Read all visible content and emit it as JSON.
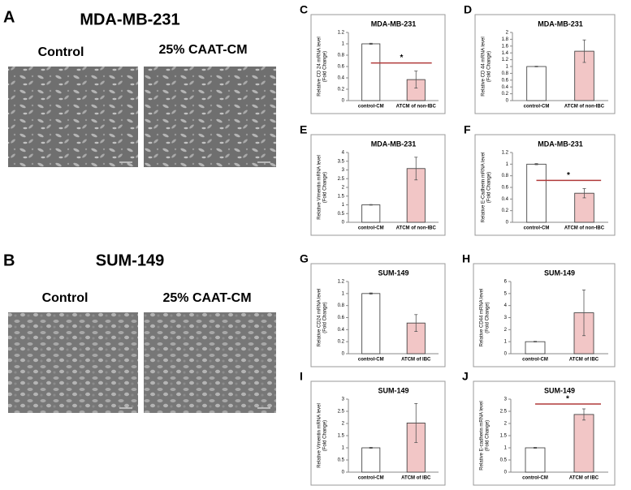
{
  "panels": {
    "a": {
      "letter": "A",
      "cell_line": "MDA-MB-231",
      "left_label": "Control",
      "right_label": "25% CAAT-CM"
    },
    "b": {
      "letter": "B",
      "cell_line": "SUM-149",
      "left_label": "Control",
      "right_label": "25% CAAT-CM"
    }
  },
  "chart_data": [
    {
      "type": "bar",
      "letter": "C",
      "title": "MDA-MB-231",
      "y_label": [
        "Relative CD 24 mRNA level",
        "(Fold Change)"
      ],
      "categories": [
        "control-CM",
        "ATCM of non-IBC"
      ],
      "values": [
        1,
        0.37
      ],
      "errors": [
        0.01,
        0.15
      ],
      "colors": [
        "#ffffff",
        "#f2c6c6"
      ],
      "ylim": [
        0,
        1.2
      ],
      "yticks": [
        0,
        0.2,
        0.4,
        0.6,
        0.8,
        1,
        1.2
      ],
      "significance": "*"
    },
    {
      "type": "bar",
      "letter": "D",
      "title": "MDA-MB-231",
      "y_label": [
        "Relative CD 44 mRNA level",
        "(Fold Change)"
      ],
      "categories": [
        "control-CM",
        "ATCM of non-IBC"
      ],
      "values": [
        1,
        1.45
      ],
      "errors": [
        0.01,
        0.33
      ],
      "colors": [
        "#ffffff",
        "#f2c6c6"
      ],
      "ylim": [
        0,
        2
      ],
      "yticks": [
        0,
        0.2,
        0.4,
        0.6,
        0.8,
        1,
        1.2,
        1.4,
        1.6,
        1.8,
        2
      ]
    },
    {
      "type": "bar",
      "letter": "E",
      "title": "MDA-MB-231",
      "y_label": [
        "Relative Vimentin mRNA level",
        "(Fold Change)"
      ],
      "categories": [
        "control-CM",
        "ATCM of non-IBC"
      ],
      "values": [
        1,
        3.08
      ],
      "errors": [
        0.02,
        0.65
      ],
      "colors": [
        "#ffffff",
        "#f2c6c6"
      ],
      "ylim": [
        0,
        4
      ],
      "yticks": [
        0,
        0.5,
        1,
        1.5,
        2,
        2.5,
        3,
        3.5,
        4
      ]
    },
    {
      "type": "bar",
      "letter": "F",
      "title": "MDA-MB-231",
      "y_label": [
        "Relative E-Cadherin mRNA level",
        "(Fold Change)"
      ],
      "categories": [
        "control-CM",
        "ATCM of non-IBC"
      ],
      "values": [
        1,
        0.5
      ],
      "errors": [
        0.01,
        0.08
      ],
      "colors": [
        "#ffffff",
        "#f2c6c6"
      ],
      "ylim": [
        0,
        1.2
      ],
      "yticks": [
        0,
        0.2,
        0.4,
        0.6,
        0.8,
        1,
        1.2
      ],
      "significance": "*"
    },
    {
      "type": "bar",
      "letter": "G",
      "title": "SUM-149",
      "y_label": [
        "Relative CD24 mRNA level",
        "(Fold Change)"
      ],
      "categories": [
        "control-CM",
        "ATCM of IBC"
      ],
      "values": [
        1,
        0.51
      ],
      "errors": [
        0.01,
        0.14
      ],
      "colors": [
        "#ffffff",
        "#f2c6c6"
      ],
      "ylim": [
        0,
        1.2
      ],
      "yticks": [
        0,
        0.2,
        0.4,
        0.6,
        0.8,
        1,
        1.2
      ]
    },
    {
      "type": "bar",
      "letter": "H",
      "title": "SUM-149",
      "y_label": [
        "Relative CD44 mRNA level",
        "(Fold Change)"
      ],
      "categories": [
        "control-CM",
        "ATCM of IBC"
      ],
      "values": [
        1,
        3.4
      ],
      "errors": [
        0.03,
        1.9
      ],
      "colors": [
        "#ffffff",
        "#f2c6c6"
      ],
      "ylim": [
        0,
        6
      ],
      "yticks": [
        0,
        1,
        2,
        3,
        4,
        5,
        6
      ]
    },
    {
      "type": "bar",
      "letter": "I",
      "title": "SUM-149",
      "y_label": [
        "Relative Vimentin mRNA level",
        "(Fold Change)"
      ],
      "categories": [
        "control-CM",
        "ATCM of IBC"
      ],
      "values": [
        1,
        2.02
      ],
      "errors": [
        0.02,
        0.8
      ],
      "colors": [
        "#ffffff",
        "#f2c6c6"
      ],
      "ylim": [
        0,
        3
      ],
      "yticks": [
        0,
        0.5,
        1,
        1.5,
        2,
        2.5,
        3
      ]
    },
    {
      "type": "bar",
      "letter": "J",
      "title": "SUM-149",
      "y_label": [
        "Relative E-cadherin mRNA level",
        "(Fold Change)"
      ],
      "categories": [
        "control-CM",
        "ATCM of IBC"
      ],
      "values": [
        1,
        2.37
      ],
      "errors": [
        0.02,
        0.23
      ],
      "colors": [
        "#ffffff",
        "#f2c6c6"
      ],
      "ylim": [
        0,
        3
      ],
      "yticks": [
        0,
        0.5,
        1,
        1.5,
        2,
        2.5,
        3
      ],
      "significance": "*"
    }
  ]
}
